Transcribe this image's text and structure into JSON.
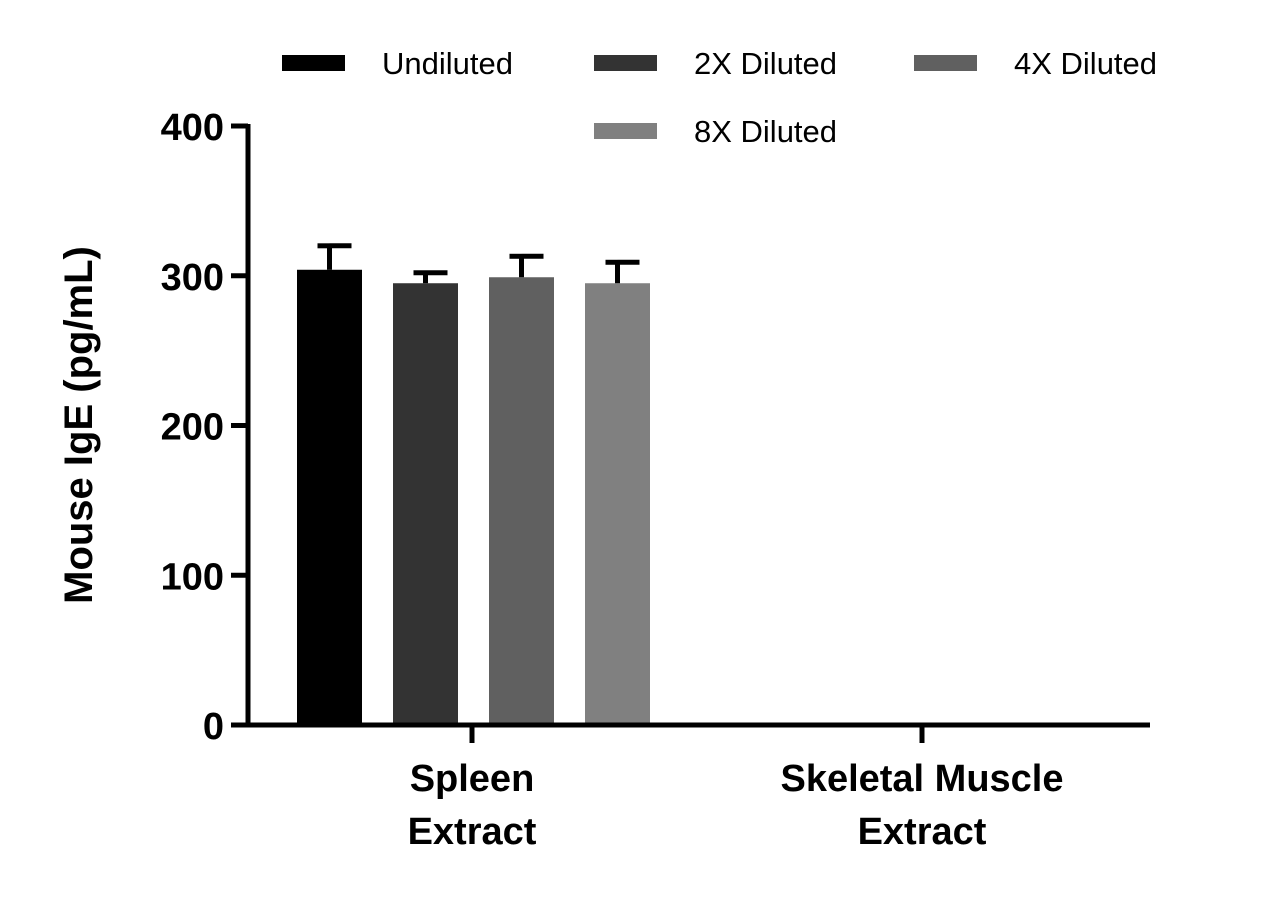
{
  "chart_data": {
    "type": "bar",
    "categories": [
      [
        "Spleen",
        "Extract"
      ],
      [
        "Skeletal Muscle",
        "Extract"
      ]
    ],
    "series": [
      {
        "name": "Undiluted",
        "values": [
          304,
          0
        ],
        "errors": [
          16,
          0
        ],
        "color": "#000000"
      },
      {
        "name": "2X Diluted",
        "values": [
          295,
          0
        ],
        "errors": [
          7,
          0
        ],
        "color": "#333333"
      },
      {
        "name": "4X Diluted",
        "values": [
          299,
          0
        ],
        "errors": [
          14,
          0
        ],
        "color": "#606060"
      },
      {
        "name": "8X Diluted",
        "values": [
          295,
          0
        ],
        "errors": [
          14,
          0
        ],
        "color": "#808080"
      }
    ],
    "ylabel": "Mouse IgE (pg/mL)",
    "ylim": [
      0,
      400
    ],
    "yticks": [
      0,
      100,
      200,
      300,
      400
    ],
    "grid": false,
    "legend_position": "top"
  }
}
